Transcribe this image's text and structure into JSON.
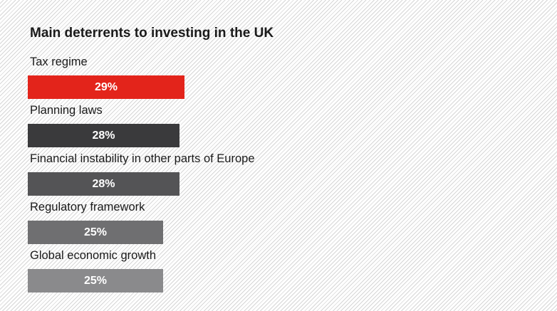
{
  "chart_data": {
    "type": "bar",
    "orientation": "horizontal",
    "title": "Main deterrents to investing in the UK",
    "categories": [
      "Tax regime",
      "Planning laws",
      "Financial instability in other parts of Europe",
      "Regulatory framework",
      "Global economic growth"
    ],
    "values": [
      29,
      28,
      28,
      25,
      25
    ],
    "value_labels": [
      "29%",
      "28%",
      "28%",
      "25%",
      "25%"
    ],
    "unit": "%",
    "bar_colors": [
      "#e3241b",
      "#3a3a3c",
      "#545456",
      "#6f6f71",
      "#8a8a8c"
    ],
    "grid": false,
    "legend": "none"
  }
}
